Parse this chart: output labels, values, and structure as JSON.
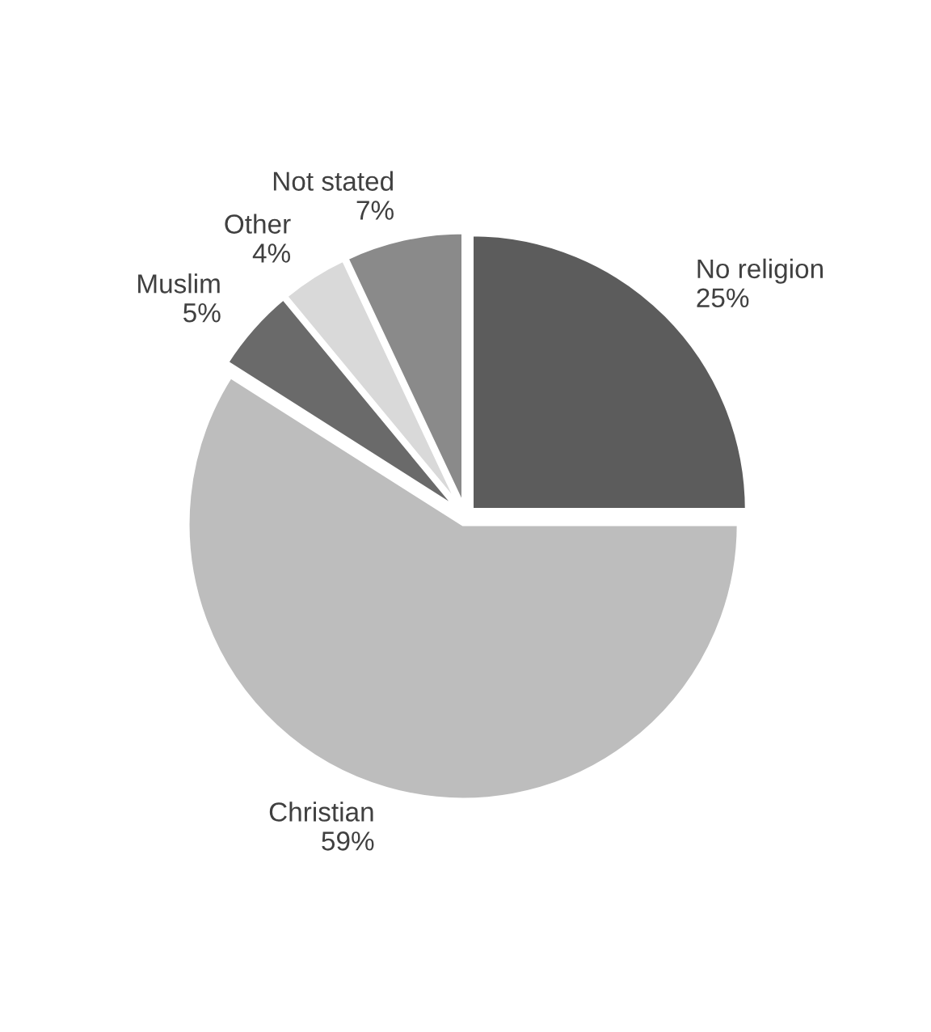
{
  "chart_data": {
    "type": "pie",
    "categories": [
      "No religion",
      "Christian",
      "Muslim",
      "Other",
      "Not stated"
    ],
    "values": [
      25,
      59,
      5,
      4,
      7
    ],
    "value_labels": [
      "25%",
      "59%",
      "5%",
      "4%",
      "7%"
    ],
    "colors": [
      "#5c5c5c",
      "#bdbdbd",
      "#6a6a6a",
      "#d9d9d9",
      "#8a8a8a"
    ],
    "legend": false
  }
}
